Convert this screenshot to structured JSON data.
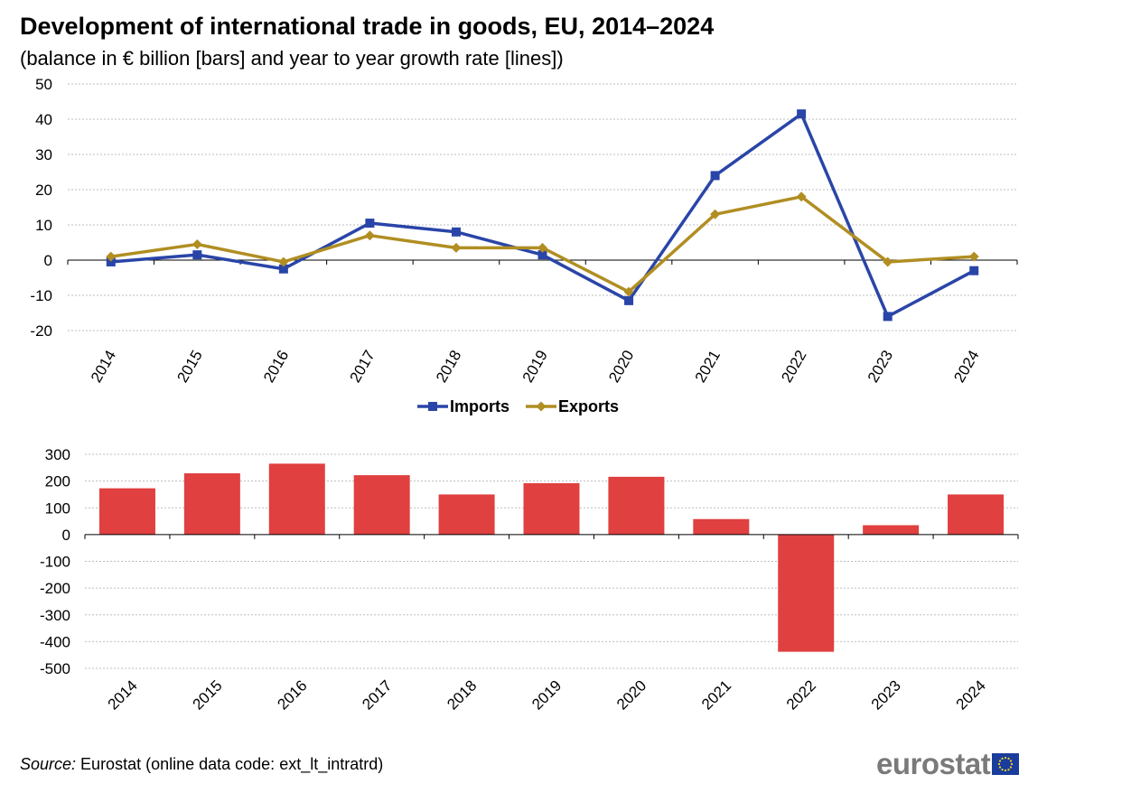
{
  "title": "Development of international trade in goods, EU, 2014–2024",
  "subtitle": "(balance in € billion [bars] and year to year growth rate [lines])",
  "source": {
    "label": "Source:",
    "text": " Eurostat (online data code: ext_lt_intratrd)"
  },
  "brand": {
    "name": "eurostat",
    "flag_icon": "eu-flag-icon"
  },
  "colors": {
    "imports": "#2a45a8",
    "exports": "#b08e22",
    "balance": "#e04040",
    "grid": "#bdbdbd",
    "axis": "#000000"
  },
  "chart_data": [
    {
      "type": "line",
      "categories": [
        "2014",
        "2015",
        "2016",
        "2017",
        "2018",
        "2019",
        "2020",
        "2021",
        "2022",
        "2023",
        "2024"
      ],
      "ylim": [
        -20,
        50
      ],
      "yticks": [
        50,
        40,
        30,
        20,
        10,
        0,
        -10,
        -20
      ],
      "grid": true,
      "legend": "bottom-center",
      "series": [
        {
          "name": "Imports",
          "marker": "square",
          "values": [
            -0.5,
            1.5,
            -2.5,
            10.5,
            8,
            1.5,
            -11.5,
            24,
            41.5,
            -16,
            -3
          ]
        },
        {
          "name": "Exports",
          "marker": "diamond",
          "values": [
            1,
            4.5,
            -0.5,
            7,
            3.5,
            3.5,
            -9,
            13,
            18,
            -0.5,
            1
          ]
        }
      ]
    },
    {
      "type": "bar",
      "categories": [
        "2014",
        "2015",
        "2016",
        "2017",
        "2018",
        "2019",
        "2020",
        "2021",
        "2022",
        "2023",
        "2024"
      ],
      "ylim": [
        -500,
        300
      ],
      "yticks": [
        300,
        200,
        100,
        0,
        -100,
        -200,
        -300,
        -400,
        -500
      ],
      "grid": true,
      "series": [
        {
          "values": [
            173,
            229,
            265,
            222,
            150,
            192,
            216,
            58,
            -438,
            35,
            150
          ]
        }
      ]
    }
  ]
}
